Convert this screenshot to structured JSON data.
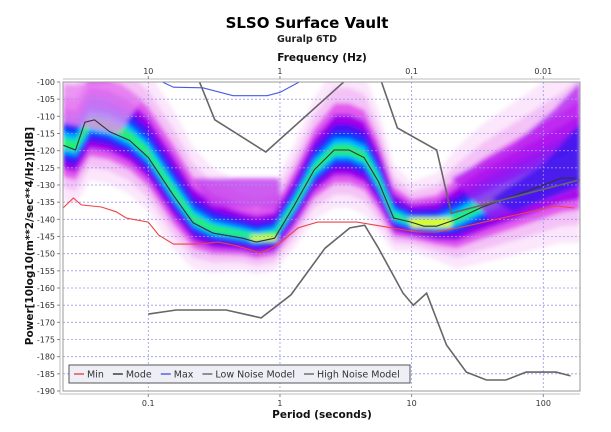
{
  "chart_data": {
    "type": "line",
    "title": "SLSO Surface Vault",
    "subtitle": "Guralp 6TD",
    "xlabel": "Period (seconds)",
    "x2label": "Frequency (Hz)",
    "ylabel": "Power[10log10(m**2/sec**4/Hz)][dB]",
    "xscale": "log",
    "xlim": [
      0.0225,
      190
    ],
    "ylim": [
      -190,
      -100
    ],
    "grid": true,
    "legend_position": "bottom-left",
    "x_ticks": [
      {
        "value": 0.1,
        "label": "0.1"
      },
      {
        "value": 1,
        "label": "1"
      },
      {
        "value": 10,
        "label": "10"
      },
      {
        "value": 100,
        "label": "100"
      }
    ],
    "x2_ticks": [
      {
        "value": 0.1,
        "label": "10"
      },
      {
        "value": 1,
        "label": "1"
      },
      {
        "value": 10,
        "label": "0.1"
      },
      {
        "value": 100,
        "label": "0.01"
      }
    ],
    "y_ticks": [
      -100,
      -105,
      -110,
      -115,
      -120,
      -125,
      -130,
      -135,
      -140,
      -145,
      -150,
      -155,
      -160,
      -165,
      -170,
      -175,
      -180,
      -185,
      -190
    ],
    "series": [
      {
        "name": "Min",
        "color": "#ee4444",
        "x": [
          0.0225,
          0.027,
          0.031,
          0.044,
          0.057,
          0.068,
          0.1,
          0.12,
          0.155,
          0.24,
          0.34,
          0.48,
          0.71,
          0.97,
          1.37,
          1.93,
          3.85,
          5.9,
          11.0,
          15.6,
          26.0,
          62.0,
          125,
          172
        ],
        "y": [
          -136.7,
          -133.8,
          -135.8,
          -136.4,
          -137.8,
          -139.6,
          -140.8,
          -144.6,
          -147.2,
          -147.2,
          -146.6,
          -147.8,
          -149.8,
          -147.4,
          -142.5,
          -140.8,
          -140.8,
          -142.0,
          -143.7,
          -143.7,
          -142.0,
          -138.7,
          -136.1,
          -136.7
        ]
      },
      {
        "name": "Mode",
        "color": "#333333",
        "x": [
          0.0225,
          0.028,
          0.033,
          0.039,
          0.051,
          0.072,
          0.1,
          0.155,
          0.219,
          0.31,
          0.52,
          0.66,
          0.91,
          1.28,
          1.82,
          2.58,
          3.35,
          4.35,
          5.6,
          7.3,
          9.9,
          12.4,
          15.5,
          21.9,
          34.5,
          69.0,
          138,
          175
        ],
        "y": [
          -118.4,
          -119.8,
          -111.7,
          -111.0,
          -114.5,
          -117.0,
          -122.0,
          -133.0,
          -141.0,
          -144.0,
          -145.5,
          -146.6,
          -145.5,
          -136.0,
          -125.6,
          -119.8,
          -119.8,
          -122.0,
          -129.0,
          -139.6,
          -140.8,
          -142.0,
          -142.0,
          -140.0,
          -136.4,
          -132.3,
          -128.0,
          -128.0
        ]
      },
      {
        "name": "Max",
        "color": "#4a5ae0",
        "x": [
          0.128,
          0.155,
          0.26,
          0.44,
          0.8,
          1.0,
          1.4
        ],
        "y": [
          -100.0,
          -101.5,
          -101.7,
          -104.0,
          -104.0,
          -103.0,
          -100.0
        ]
      },
      {
        "name": "Low Noise Model",
        "color": "#666666",
        "x": [
          0.1,
          0.163,
          0.39,
          0.72,
          1.21,
          2.2,
          3.4,
          4.4,
          5.6,
          8.6,
          10.3,
          13.0,
          18.4,
          26.0,
          37.0,
          52.0,
          74.0,
          125,
          161
        ],
        "y": [
          -167.6,
          -166.4,
          -166.4,
          -168.7,
          -162.0,
          -148.4,
          -142.5,
          -141.7,
          -148.4,
          -161.5,
          -165.0,
          -161.5,
          -176.6,
          -184.5,
          -186.8,
          -186.8,
          -184.5,
          -184.5,
          -185.6
        ]
      },
      {
        "name": "High Noise Model",
        "color": "#666666",
        "segments": [
          {
            "x": [
              0.245,
              0.32,
              0.78,
              3.05
            ],
            "y": [
              -100.0,
              -111.0,
              -120.4,
              -100.0
            ]
          },
          {
            "x": [
              5.9,
              7.8,
              15.5,
              20.0,
              190
            ],
            "y": [
              -100.0,
              -113.4,
              -119.8,
              -138.2,
              -128.5
            ]
          }
        ]
      }
    ],
    "pdf_band": {
      "description": "probability density (colored: white-pink-magenta-blue-cyan-green-yellow)",
      "colors": [
        "#ffffff",
        "#f4c8f4",
        "#e040f0",
        "#9b00e8",
        "#3a10f0",
        "#0040ff",
        "#00c8ff",
        "#30ff60",
        "#e8ff20"
      ],
      "center_x": [
        0.0225,
        0.028,
        0.036,
        0.05,
        0.072,
        0.1,
        0.155,
        0.22,
        0.31,
        0.52,
        0.66,
        0.91,
        1.28,
        1.82,
        2.6,
        3.35,
        4.4,
        5.6,
        7.3,
        10.0,
        15.5,
        22,
        35,
        70,
        138,
        190
      ],
      "center_y": [
        -118,
        -119,
        -112,
        -113,
        -116,
        -121,
        -132,
        -140,
        -143,
        -144.5,
        -145.5,
        -144.5,
        -136,
        -125.5,
        -120,
        -120,
        -122,
        -129,
        -139,
        -141,
        -141.5,
        -140,
        -136,
        -131,
        -126,
        -124
      ],
      "half_width_db": [
        8,
        8,
        8,
        8,
        8,
        8,
        8,
        7,
        6,
        5,
        5,
        5,
        6,
        7,
        8,
        8,
        8,
        7,
        5,
        4,
        5,
        7,
        8,
        9,
        10,
        11
      ]
    }
  }
}
